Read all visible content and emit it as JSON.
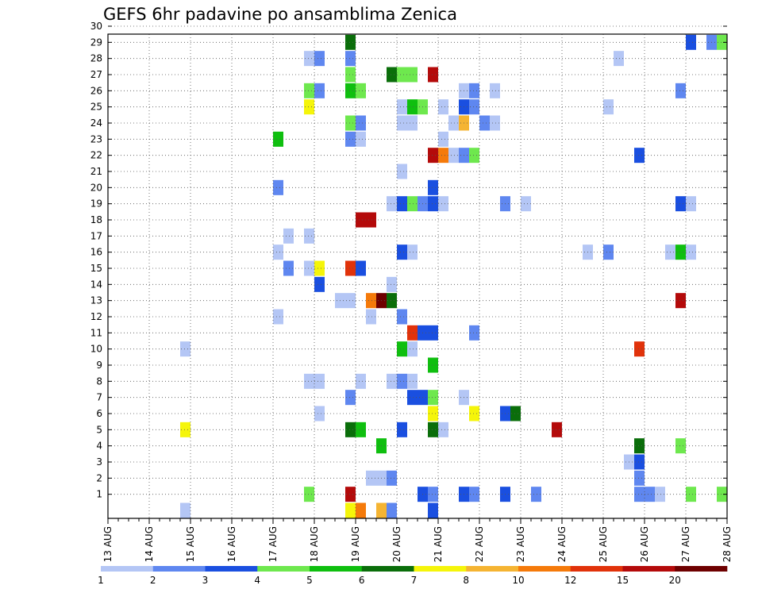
{
  "chart_data": {
    "type": "heatmap",
    "title": "GEFS 6hr padavine po ansamblima Zenica",
    "xlabel": "",
    "ylabel": "",
    "x_ticks": [
      "13 AUG",
      "14 AUG",
      "15 AUG",
      "16 AUG",
      "17 AUG",
      "18 AUG",
      "19 AUG",
      "20 AUG",
      "21 AUG",
      "22 AUG",
      "23 AUG",
      "24 AUG",
      "25 AUG",
      "26 AUG",
      "27 AUG",
      "28 AUG"
    ],
    "y_ticks": [
      1,
      2,
      3,
      4,
      5,
      6,
      7,
      8,
      9,
      10,
      11,
      12,
      13,
      14,
      15,
      16,
      17,
      18,
      19,
      20,
      21,
      22,
      23,
      24,
      25,
      26,
      27,
      28,
      29,
      30
    ],
    "ylim": [
      0,
      30
    ],
    "x_step_hours": 6,
    "grid": true,
    "colorbar": {
      "labels": [
        "1",
        "2",
        "3",
        "4",
        "5",
        "6",
        "7",
        "8",
        "10",
        "12",
        "15",
        "20"
      ],
      "colors": [
        "#b4c6f5",
        "#5f87f0",
        "#1a4fe0",
        "#6ee84e",
        "#0fbf0f",
        "#0a6e0a",
        "#f5f50a",
        "#f5b432",
        "#f57a0a",
        "#e1320a",
        "#b40a0a",
        "#6e0000"
      ]
    },
    "cells": [
      {
        "m": 30,
        "x": [
          [
            23,
            6
          ],
          [
            24,
            2
          ],
          [
            28,
            1
          ],
          [
            30,
            2
          ],
          [
            31,
            1
          ],
          [
            53,
            3
          ]
        ]
      },
      {
        "m": 29,
        "x": [
          [
            23,
            6
          ],
          [
            56,
            3
          ],
          [
            58,
            2
          ],
          [
            59,
            4
          ]
        ]
      },
      {
        "m": 28,
        "x": [
          [
            19,
            1
          ],
          [
            20,
            2
          ],
          [
            23,
            2
          ],
          [
            49,
            1
          ]
        ]
      },
      {
        "m": 27,
        "x": [
          [
            23,
            4
          ],
          [
            27,
            6
          ],
          [
            28,
            4
          ],
          [
            29,
            4
          ],
          [
            31,
            11
          ]
        ]
      },
      {
        "m": 26,
        "x": [
          [
            19,
            4
          ],
          [
            20,
            2
          ],
          [
            23,
            5
          ],
          [
            24,
            4
          ],
          [
            34,
            1
          ],
          [
            35,
            2
          ],
          [
            37,
            1
          ],
          [
            55,
            2
          ]
        ]
      },
      {
        "m": 25,
        "x": [
          [
            19,
            7
          ],
          [
            28,
            1
          ],
          [
            29,
            5
          ],
          [
            30,
            4
          ],
          [
            32,
            1
          ],
          [
            34,
            3
          ],
          [
            35,
            2
          ],
          [
            48,
            1
          ]
        ]
      },
      {
        "m": 24,
        "x": [
          [
            23,
            4
          ],
          [
            24,
            2
          ],
          [
            28,
            1
          ],
          [
            29,
            1
          ],
          [
            33,
            1
          ],
          [
            34,
            8
          ],
          [
            36,
            2
          ],
          [
            37,
            1
          ]
        ]
      },
      {
        "m": 23,
        "x": [
          [
            16,
            5
          ],
          [
            23,
            2
          ],
          [
            24,
            1
          ],
          [
            32,
            1
          ]
        ]
      },
      {
        "m": 22,
        "x": [
          [
            31,
            11
          ],
          [
            32,
            9
          ],
          [
            33,
            1
          ],
          [
            34,
            2
          ],
          [
            35,
            4
          ],
          [
            51,
            3
          ]
        ]
      },
      {
        "m": 21,
        "x": [
          [
            28,
            1
          ]
        ]
      },
      {
        "m": 20,
        "x": [
          [
            16,
            2
          ],
          [
            31,
            3
          ]
        ]
      },
      {
        "m": 19,
        "x": [
          [
            27,
            1
          ],
          [
            28,
            3
          ],
          [
            29,
            4
          ],
          [
            30,
            2
          ],
          [
            31,
            3
          ],
          [
            32,
            1
          ],
          [
            38,
            2
          ],
          [
            40,
            1
          ],
          [
            55,
            3
          ],
          [
            56,
            1
          ]
        ]
      },
      {
        "m": 18,
        "x": [
          [
            24,
            11
          ],
          [
            25,
            11
          ]
        ]
      },
      {
        "m": 17,
        "x": [
          [
            17,
            1
          ],
          [
            19,
            1
          ]
        ]
      },
      {
        "m": 16,
        "x": [
          [
            16,
            1
          ],
          [
            28,
            3
          ],
          [
            29,
            1
          ],
          [
            46,
            1
          ],
          [
            48,
            2
          ],
          [
            54,
            1
          ],
          [
            55,
            5
          ],
          [
            56,
            1
          ]
        ]
      },
      {
        "m": 15,
        "x": [
          [
            17,
            2
          ],
          [
            19,
            1
          ],
          [
            20,
            7
          ],
          [
            23,
            10
          ],
          [
            24,
            3
          ]
        ]
      },
      {
        "m": 14,
        "x": [
          [
            20,
            3
          ],
          [
            27,
            1
          ]
        ]
      },
      {
        "m": 13,
        "x": [
          [
            22,
            1
          ],
          [
            23,
            1
          ],
          [
            25,
            9
          ],
          [
            26,
            12
          ],
          [
            27,
            6
          ],
          [
            55,
            11
          ]
        ]
      },
      {
        "m": 12,
        "x": [
          [
            16,
            1
          ],
          [
            25,
            1
          ],
          [
            28,
            2
          ]
        ]
      },
      {
        "m": 11,
        "x": [
          [
            29,
            10
          ],
          [
            30,
            3
          ],
          [
            31,
            3
          ],
          [
            35,
            2
          ]
        ]
      },
      {
        "m": 10,
        "x": [
          [
            7,
            1
          ],
          [
            28,
            5
          ],
          [
            29,
            1
          ],
          [
            51,
            10
          ]
        ]
      },
      {
        "m": 9,
        "x": [
          [
            31,
            5
          ]
        ]
      },
      {
        "m": 8,
        "x": [
          [
            19,
            1
          ],
          [
            20,
            1
          ],
          [
            24,
            1
          ],
          [
            27,
            1
          ],
          [
            28,
            2
          ],
          [
            29,
            1
          ]
        ]
      },
      {
        "m": 7,
        "x": [
          [
            23,
            2
          ],
          [
            29,
            3
          ],
          [
            30,
            3
          ],
          [
            31,
            4
          ],
          [
            34,
            1
          ]
        ]
      },
      {
        "m": 6,
        "x": [
          [
            20,
            1
          ],
          [
            31,
            7
          ],
          [
            35,
            7
          ],
          [
            38,
            3
          ],
          [
            39,
            6
          ]
        ]
      },
      {
        "m": 5,
        "x": [
          [
            7,
            7
          ],
          [
            23,
            6
          ],
          [
            24,
            5
          ],
          [
            28,
            3
          ],
          [
            31,
            6
          ],
          [
            32,
            1
          ],
          [
            43,
            11
          ]
        ]
      },
      {
        "m": 4,
        "x": [
          [
            26,
            5
          ],
          [
            51,
            6
          ],
          [
            55,
            4
          ]
        ]
      },
      {
        "m": 3,
        "x": [
          [
            50,
            1
          ],
          [
            51,
            3
          ]
        ]
      },
      {
        "m": 2,
        "x": [
          [
            25,
            1
          ],
          [
            26,
            1
          ],
          [
            27,
            2
          ],
          [
            51,
            2
          ]
        ]
      },
      {
        "m": 1,
        "x": [
          [
            19,
            4
          ],
          [
            23,
            11
          ],
          [
            30,
            3
          ],
          [
            31,
            2
          ],
          [
            34,
            3
          ],
          [
            35,
            2
          ],
          [
            38,
            3
          ],
          [
            41,
            2
          ],
          [
            51,
            2
          ],
          [
            52,
            2
          ],
          [
            53,
            1
          ],
          [
            56,
            4
          ],
          [
            59,
            4
          ]
        ]
      },
      {
        "m": 0,
        "x": [
          [
            7,
            1
          ],
          [
            23,
            7
          ],
          [
            24,
            9
          ],
          [
            26,
            8
          ],
          [
            27,
            2
          ],
          [
            31,
            3
          ]
        ]
      }
    ]
  }
}
